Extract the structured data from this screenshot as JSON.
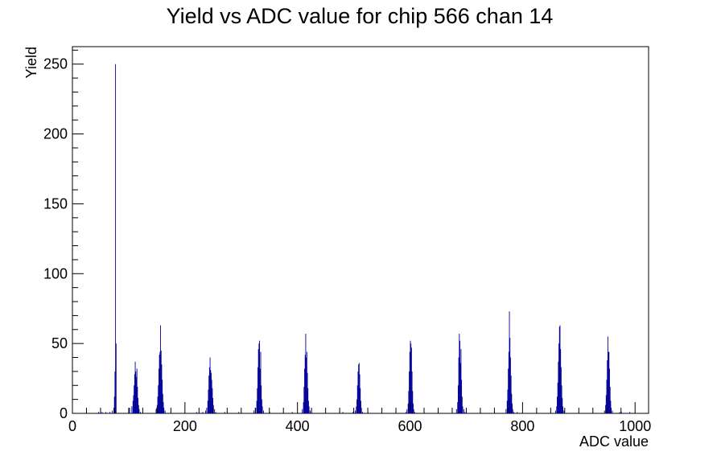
{
  "chart_data": {
    "type": "bar",
    "title": "Yield vs ADC value for chip 566 chan 14",
    "xlabel": "ADC value",
    "ylabel": "Yield",
    "xlim": [
      0,
      1024
    ],
    "ylim": [
      0,
      262.5
    ],
    "x_ticks": [
      0,
      200,
      400,
      600,
      800,
      1000
    ],
    "y_ticks": [
      0,
      50,
      100,
      150,
      200,
      250
    ],
    "grid": false,
    "legend": "none",
    "series_color": "#000099",
    "series": [
      {
        "bins": [
          [
            46,
            1
          ],
          [
            52,
            1
          ],
          [
            59,
            1
          ],
          [
            66,
            1
          ],
          [
            70,
            2
          ],
          [
            73,
            4
          ],
          [
            74,
            12
          ],
          [
            75,
            30
          ],
          [
            76,
            250
          ],
          [
            77,
            50
          ],
          [
            101,
            4
          ],
          [
            105,
            5
          ],
          [
            107,
            9
          ],
          [
            108,
            13
          ],
          [
            109,
            20
          ],
          [
            110,
            28
          ],
          [
            111,
            37
          ],
          [
            112,
            30
          ],
          [
            113,
            26
          ],
          [
            114,
            32
          ],
          [
            115,
            19
          ],
          [
            116,
            11
          ],
          [
            117,
            6
          ],
          [
            118,
            3
          ],
          [
            120,
            1
          ],
          [
            148,
            3
          ],
          [
            150,
            6
          ],
          [
            151,
            12
          ],
          [
            152,
            20
          ],
          [
            153,
            32
          ],
          [
            154,
            42
          ],
          [
            155,
            44
          ],
          [
            156,
            63
          ],
          [
            157,
            45
          ],
          [
            158,
            35
          ],
          [
            159,
            24
          ],
          [
            160,
            14
          ],
          [
            161,
            8
          ],
          [
            162,
            4
          ],
          [
            164,
            2
          ],
          [
            220,
            1
          ],
          [
            231,
            1
          ],
          [
            236,
            2
          ],
          [
            238,
            4
          ],
          [
            240,
            9
          ],
          [
            241,
            17
          ],
          [
            242,
            27
          ],
          [
            243,
            33
          ],
          [
            244,
            40
          ],
          [
            245,
            31
          ],
          [
            246,
            29
          ],
          [
            247,
            24
          ],
          [
            248,
            18
          ],
          [
            249,
            11
          ],
          [
            250,
            6
          ],
          [
            252,
            3
          ],
          [
            254,
            1
          ],
          [
            270,
            1
          ],
          [
            295,
            1
          ],
          [
            322,
            2
          ],
          [
            325,
            4
          ],
          [
            327,
            9
          ],
          [
            328,
            18
          ],
          [
            329,
            33
          ],
          [
            330,
            46
          ],
          [
            331,
            50
          ],
          [
            332,
            52
          ],
          [
            333,
            32
          ],
          [
            334,
            44
          ],
          [
            335,
            20
          ],
          [
            336,
            10
          ],
          [
            337,
            5
          ],
          [
            339,
            2
          ],
          [
            350,
            1
          ],
          [
            390,
            1
          ],
          [
            408,
            3
          ],
          [
            410,
            8
          ],
          [
            411,
            19
          ],
          [
            412,
            32
          ],
          [
            413,
            42
          ],
          [
            414,
            57
          ],
          [
            415,
            40
          ],
          [
            416,
            44
          ],
          [
            417,
            29
          ],
          [
            418,
            18
          ],
          [
            419,
            9
          ],
          [
            420,
            5
          ],
          [
            422,
            2
          ],
          [
            480,
            1
          ],
          [
            498,
            1
          ],
          [
            502,
            2
          ],
          [
            504,
            5
          ],
          [
            505,
            10
          ],
          [
            506,
            20
          ],
          [
            507,
            30
          ],
          [
            508,
            35
          ],
          [
            509,
            36
          ],
          [
            510,
            28
          ],
          [
            511,
            18
          ],
          [
            512,
            9
          ],
          [
            513,
            4
          ],
          [
            515,
            1
          ],
          [
            592,
            1
          ],
          [
            594,
            3
          ],
          [
            596,
            7
          ],
          [
            597,
            16
          ],
          [
            598,
            30
          ],
          [
            599,
            44
          ],
          [
            600,
            52
          ],
          [
            601,
            50
          ],
          [
            602,
            47
          ],
          [
            603,
            30
          ],
          [
            604,
            16
          ],
          [
            605,
            7
          ],
          [
            606,
            3
          ],
          [
            608,
            1
          ],
          [
            682,
            3
          ],
          [
            684,
            8
          ],
          [
            685,
            20
          ],
          [
            686,
            40
          ],
          [
            687,
            57
          ],
          [
            688,
            52
          ],
          [
            689,
            36
          ],
          [
            690,
            46
          ],
          [
            691,
            24
          ],
          [
            692,
            12
          ],
          [
            693,
            5
          ],
          [
            695,
            3
          ],
          [
            697,
            1
          ],
          [
            770,
            3
          ],
          [
            772,
            9
          ],
          [
            773,
            17
          ],
          [
            774,
            32
          ],
          [
            775,
            44
          ],
          [
            776,
            73
          ],
          [
            777,
            54
          ],
          [
            778,
            40
          ],
          [
            779,
            27
          ],
          [
            780,
            14
          ],
          [
            781,
            7
          ],
          [
            782,
            3
          ],
          [
            784,
            1
          ],
          [
            790,
            1
          ],
          [
            858,
            2
          ],
          [
            860,
            5
          ],
          [
            861,
            12
          ],
          [
            862,
            22
          ],
          [
            863,
            37
          ],
          [
            864,
            50
          ],
          [
            865,
            62
          ],
          [
            866,
            63
          ],
          [
            867,
            46
          ],
          [
            868,
            33
          ],
          [
            869,
            20
          ],
          [
            870,
            11
          ],
          [
            871,
            5
          ],
          [
            873,
            2
          ],
          [
            945,
            2
          ],
          [
            947,
            6
          ],
          [
            948,
            13
          ],
          [
            949,
            24
          ],
          [
            950,
            38
          ],
          [
            951,
            55
          ],
          [
            952,
            44
          ],
          [
            953,
            44
          ],
          [
            954,
            32
          ],
          [
            955,
            19
          ],
          [
            956,
            9
          ],
          [
            957,
            4
          ],
          [
            959,
            2
          ],
          [
            972,
            1
          ],
          [
            975,
            1
          ],
          [
            990,
            1
          ]
        ]
      }
    ]
  }
}
